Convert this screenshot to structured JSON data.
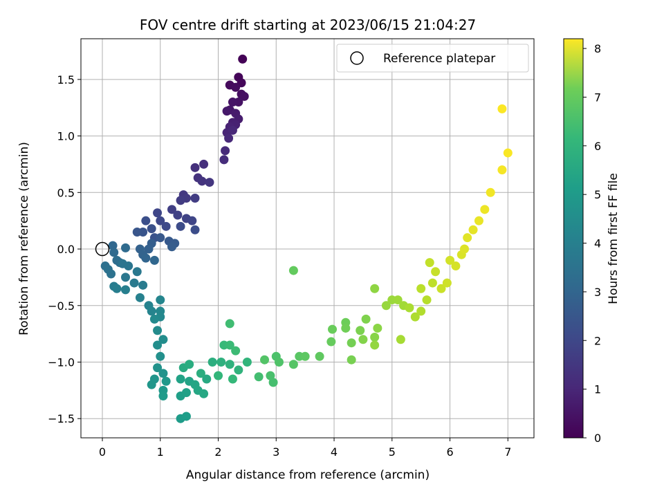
{
  "chart_data": {
    "type": "scatter",
    "title": "FOV centre drift starting at 2023/06/15 21:04:27",
    "xlabel": "Angular distance from reference (arcmin)",
    "ylabel": "Rotation from reference (arcmin)",
    "xlim": [
      -0.37,
      7.45
    ],
    "ylim": [
      -1.67,
      1.86
    ],
    "xticks": [
      0,
      1,
      2,
      3,
      4,
      5,
      6,
      7
    ],
    "yticks": [
      -1.5,
      -1.0,
      -0.5,
      0.0,
      0.5,
      1.0,
      1.5
    ],
    "xtick_labels": [
      "0",
      "1",
      "2",
      "3",
      "4",
      "5",
      "6",
      "7"
    ],
    "ytick_labels": [
      "−1.5",
      "−1.0",
      "−0.5",
      "0.0",
      "0.5",
      "1.0",
      "1.5"
    ],
    "grid": true,
    "legend": {
      "position": "top-right",
      "entries": [
        "Reference platepar"
      ]
    },
    "reference_point": {
      "x": 0.0,
      "y": 0.0,
      "label": "Reference platepar"
    },
    "colorbar": {
      "label": "Hours from first FF file",
      "range": [
        0,
        8.2
      ],
      "ticks": [
        0,
        1,
        2,
        3,
        4,
        5,
        6,
        7,
        8
      ],
      "tick_labels": [
        "0",
        "1",
        "2",
        "3",
        "4",
        "5",
        "6",
        "7",
        "8"
      ],
      "colormap": "viridis"
    },
    "points_columns": [
      "x",
      "y",
      "hours"
    ],
    "points": [
      [
        2.42,
        1.68,
        0.05
      ],
      [
        2.35,
        1.52,
        0.1
      ],
      [
        2.4,
        1.47,
        0.15
      ],
      [
        2.2,
        1.45,
        0.2
      ],
      [
        2.3,
        1.43,
        0.25
      ],
      [
        2.4,
        1.37,
        0.3
      ],
      [
        2.45,
        1.35,
        0.35
      ],
      [
        2.35,
        1.3,
        0.4
      ],
      [
        2.25,
        1.3,
        0.45
      ],
      [
        2.2,
        1.23,
        0.5
      ],
      [
        2.15,
        1.22,
        0.55
      ],
      [
        2.3,
        1.2,
        0.6
      ],
      [
        2.35,
        1.15,
        0.65
      ],
      [
        2.25,
        1.12,
        0.7
      ],
      [
        2.3,
        1.1,
        0.75
      ],
      [
        2.2,
        1.08,
        0.8
      ],
      [
        2.15,
        1.03,
        0.85
      ],
      [
        2.25,
        1.05,
        0.9
      ],
      [
        2.18,
        0.98,
        0.95
      ],
      [
        2.12,
        0.87,
        1.0
      ],
      [
        2.1,
        0.79,
        1.05
      ],
      [
        1.75,
        0.75,
        1.1
      ],
      [
        1.6,
        0.72,
        1.15
      ],
      [
        1.65,
        0.63,
        1.2
      ],
      [
        1.72,
        0.6,
        1.25
      ],
      [
        1.85,
        0.59,
        1.3
      ],
      [
        1.4,
        0.48,
        1.35
      ],
      [
        1.45,
        0.45,
        1.4
      ],
      [
        1.35,
        0.43,
        1.45
      ],
      [
        1.6,
        0.45,
        1.5
      ],
      [
        1.2,
        0.35,
        1.55
      ],
      [
        1.3,
        0.3,
        1.6
      ],
      [
        1.45,
        0.27,
        1.65
      ],
      [
        1.55,
        0.25,
        1.7
      ],
      [
        0.95,
        0.32,
        1.75
      ],
      [
        1.0,
        0.25,
        1.8
      ],
      [
        1.1,
        0.2,
        1.85
      ],
      [
        1.35,
        0.2,
        1.9
      ],
      [
        1.6,
        0.17,
        1.95
      ],
      [
        0.75,
        0.25,
        2.0
      ],
      [
        0.85,
        0.18,
        2.05
      ],
      [
        0.9,
        0.1,
        2.1
      ],
      [
        0.7,
        0.15,
        2.15
      ],
      [
        0.6,
        0.15,
        2.2
      ],
      [
        1.0,
        0.1,
        2.25
      ],
      [
        1.15,
        0.07,
        2.3
      ],
      [
        1.25,
        0.05,
        2.35
      ],
      [
        1.2,
        0.02,
        2.4
      ],
      [
        0.85,
        0.05,
        2.45
      ],
      [
        0.8,
        0.0,
        2.5
      ],
      [
        0.65,
        0.0,
        2.55
      ],
      [
        0.7,
        -0.05,
        2.6
      ],
      [
        0.75,
        -0.08,
        2.65
      ],
      [
        0.9,
        -0.1,
        2.7
      ],
      [
        0.18,
        0.03,
        2.75
      ],
      [
        0.2,
        -0.03,
        2.8
      ],
      [
        0.4,
        0.01,
        2.85
      ],
      [
        0.25,
        -0.1,
        2.9
      ],
      [
        0.3,
        -0.12,
        2.95
      ],
      [
        0.05,
        -0.15,
        3.0
      ],
      [
        0.1,
        -0.18,
        3.05
      ],
      [
        0.15,
        -0.22,
        3.1
      ],
      [
        0.35,
        -0.13,
        3.15
      ],
      [
        0.45,
        -0.15,
        3.2
      ],
      [
        0.4,
        -0.25,
        3.25
      ],
      [
        0.6,
        -0.2,
        3.3
      ],
      [
        0.55,
        -0.3,
        3.35
      ],
      [
        0.7,
        -0.32,
        3.4
      ],
      [
        0.2,
        -0.33,
        3.45
      ],
      [
        0.25,
        -0.35,
        3.5
      ],
      [
        0.4,
        -0.36,
        3.55
      ],
      [
        0.65,
        -0.43,
        3.6
      ],
      [
        0.8,
        -0.5,
        3.65
      ],
      [
        0.85,
        -0.55,
        3.7
      ],
      [
        1.0,
        -0.45,
        3.75
      ],
      [
        1.0,
        -0.55,
        3.8
      ],
      [
        1.0,
        -0.6,
        3.85
      ],
      [
        0.9,
        -0.62,
        3.9
      ],
      [
        0.95,
        -0.72,
        3.95
      ],
      [
        1.05,
        -0.8,
        4.0
      ],
      [
        0.95,
        -0.85,
        4.05
      ],
      [
        1.0,
        -0.95,
        4.1
      ],
      [
        0.95,
        -1.05,
        4.15
      ],
      [
        1.05,
        -1.1,
        4.2
      ],
      [
        0.9,
        -1.15,
        4.25
      ],
      [
        0.85,
        -1.2,
        4.3
      ],
      [
        1.1,
        -1.17,
        4.35
      ],
      [
        1.05,
        -1.25,
        4.4
      ],
      [
        1.05,
        -1.3,
        4.45
      ],
      [
        1.35,
        -1.5,
        4.5
      ],
      [
        1.45,
        -1.48,
        4.55
      ],
      [
        1.35,
        -1.3,
        4.6
      ],
      [
        1.45,
        -1.27,
        4.65
      ],
      [
        1.35,
        -1.15,
        4.7
      ],
      [
        1.5,
        -1.17,
        4.75
      ],
      [
        1.6,
        -1.2,
        4.8
      ],
      [
        1.65,
        -1.25,
        4.85
      ],
      [
        1.75,
        -1.28,
        4.9
      ],
      [
        1.8,
        -1.15,
        4.95
      ],
      [
        1.4,
        -1.05,
        5.0
      ],
      [
        1.5,
        -1.02,
        5.05
      ],
      [
        1.7,
        -1.1,
        5.1
      ],
      [
        1.9,
        -1.0,
        5.15
      ],
      [
        2.05,
        -1.0,
        5.2
      ],
      [
        2.2,
        -1.02,
        5.25
      ],
      [
        2.35,
        -1.07,
        5.3
      ],
      [
        2.5,
        -1.0,
        5.35
      ],
      [
        2.0,
        -1.12,
        5.4
      ],
      [
        2.25,
        -1.15,
        5.45
      ],
      [
        2.1,
        -0.85,
        5.5
      ],
      [
        2.2,
        -0.85,
        5.55
      ],
      [
        2.3,
        -0.9,
        5.6
      ],
      [
        2.2,
        -0.66,
        5.65
      ],
      [
        2.7,
        -1.13,
        5.7
      ],
      [
        2.95,
        -1.18,
        5.75
      ],
      [
        2.9,
        -1.12,
        5.8
      ],
      [
        3.0,
        -0.95,
        5.85
      ],
      [
        3.05,
        -1.0,
        5.9
      ],
      [
        2.8,
        -0.98,
        5.95
      ],
      [
        3.3,
        -1.02,
        6.0
      ],
      [
        3.4,
        -0.95,
        6.05
      ],
      [
        3.5,
        -0.95,
        6.1
      ],
      [
        3.75,
        -0.95,
        6.15
      ],
      [
        3.3,
        -0.19,
        6.2
      ],
      [
        3.95,
        -0.82,
        6.25
      ],
      [
        3.97,
        -0.71,
        6.3
      ],
      [
        4.2,
        -0.65,
        6.35
      ],
      [
        4.2,
        -0.7,
        6.4
      ],
      [
        4.3,
        -0.83,
        6.45
      ],
      [
        4.3,
        -0.98,
        6.5
      ],
      [
        4.45,
        -0.72,
        6.55
      ],
      [
        4.55,
        -0.62,
        6.6
      ],
      [
        4.5,
        -0.8,
        6.65
      ],
      [
        4.7,
        -0.78,
        6.7
      ],
      [
        4.75,
        -0.7,
        6.75
      ],
      [
        4.7,
        -0.35,
        6.8
      ],
      [
        4.7,
        -0.85,
        6.85
      ],
      [
        4.9,
        -0.5,
        6.9
      ],
      [
        5.0,
        -0.45,
        6.95
      ],
      [
        5.1,
        -0.45,
        7.0
      ],
      [
        5.2,
        -0.5,
        7.05
      ],
      [
        5.15,
        -0.8,
        7.1
      ],
      [
        5.3,
        -0.52,
        7.15
      ],
      [
        5.4,
        -0.6,
        7.2
      ],
      [
        5.5,
        -0.55,
        7.25
      ],
      [
        5.6,
        -0.45,
        7.3
      ],
      [
        5.5,
        -0.35,
        7.35
      ],
      [
        5.7,
        -0.3,
        7.4
      ],
      [
        5.65,
        -0.12,
        7.45
      ],
      [
        5.75,
        -0.2,
        7.5
      ],
      [
        5.85,
        -0.35,
        7.55
      ],
      [
        5.95,
        -0.3,
        7.6
      ],
      [
        6.0,
        -0.1,
        7.65
      ],
      [
        6.1,
        -0.15,
        7.7
      ],
      [
        6.2,
        -0.05,
        7.75
      ],
      [
        6.25,
        0.0,
        7.8
      ],
      [
        6.3,
        0.1,
        7.85
      ],
      [
        6.4,
        0.17,
        7.9
      ],
      [
        6.5,
        0.25,
        7.95
      ],
      [
        6.6,
        0.35,
        8.0
      ],
      [
        6.7,
        0.5,
        8.05
      ],
      [
        6.9,
        0.7,
        8.1
      ],
      [
        7.0,
        0.85,
        8.15
      ],
      [
        6.9,
        1.24,
        8.18
      ]
    ]
  }
}
